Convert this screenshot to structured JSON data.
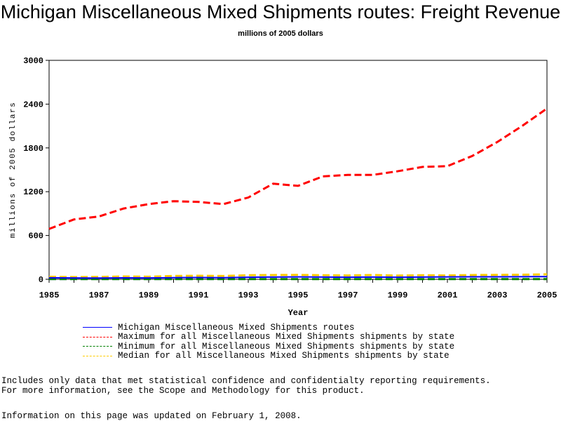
{
  "page": {
    "notes": [
      "Includes only data that met statistical confidence and confidentialty reporting requirements.",
      "For more information, see the Scope and Methodology for this product."
    ],
    "updated": "Information on this page was updated on February 1, 2008."
  },
  "chart_data": {
    "type": "line",
    "title": "Michigan Miscellaneous Mixed Shipments routes: Freight Revenue",
    "subtitle": "millions of 2005 dollars",
    "xlabel": "Year",
    "ylabel": "millions of 2005 dollars",
    "xlim": [
      1985,
      2005
    ],
    "ylim": [
      0,
      3000
    ],
    "x_ticks": [
      "1985",
      "1987",
      "1989",
      "1991",
      "1993",
      "1995",
      "1997",
      "1999",
      "2001",
      "2003",
      "2005"
    ],
    "y_ticks": [
      "0",
      "600",
      "1200",
      "1800",
      "2400",
      "3000"
    ],
    "grid": false,
    "legend_position": "bottom",
    "x": [
      1985,
      1986,
      1987,
      1988,
      1989,
      1990,
      1991,
      1992,
      1993,
      1994,
      1995,
      1996,
      1997,
      1998,
      1999,
      2000,
      2001,
      2002,
      2003,
      2004,
      2005
    ],
    "series": [
      {
        "name": "Michigan Miscellaneous Mixed Shipments routes",
        "color": "#0000ff",
        "dash": "solid",
        "values": [
          20,
          18,
          17,
          19,
          18,
          22,
          24,
          22,
          28,
          30,
          32,
          30,
          28,
          30,
          28,
          30,
          32,
          34,
          34,
          35,
          36
        ]
      },
      {
        "name": "Maximum for all Miscellaneous Mixed Shipments shipments by state",
        "color": "#ff0000",
        "dash": "dashed",
        "values": [
          690,
          820,
          860,
          970,
          1030,
          1070,
          1060,
          1030,
          1120,
          1310,
          1280,
          1410,
          1430,
          1430,
          1480,
          1540,
          1550,
          1690,
          1880,
          2100,
          2340
        ]
      },
      {
        "name": "Minimum for all Miscellaneous Mixed Shipments shipments by state",
        "color": "#008000",
        "dash": "dashed",
        "values": [
          2,
          2,
          2,
          2,
          2,
          2,
          2,
          2,
          2,
          2,
          2,
          2,
          2,
          2,
          2,
          2,
          2,
          2,
          2,
          2,
          2
        ]
      },
      {
        "name": "Median for all Miscellaneous Mixed Shipments shipments by state",
        "color": "#ffcc00",
        "dash": "dashed",
        "values": [
          35,
          30,
          32,
          38,
          35,
          45,
          48,
          45,
          55,
          58,
          60,
          55,
          52,
          58,
          50,
          55,
          52,
          58,
          60,
          62,
          68
        ]
      }
    ]
  }
}
